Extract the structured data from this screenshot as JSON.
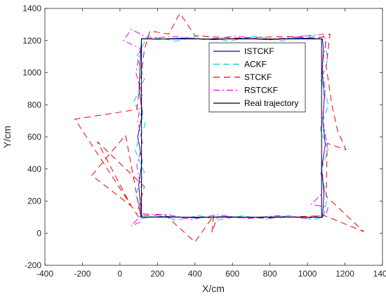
{
  "chart_data": {
    "type": "line",
    "title": "",
    "xlabel": "X/cm",
    "ylabel": "Y/cm",
    "xlim": [
      -400,
      1400
    ],
    "ylim": [
      -200,
      1400
    ],
    "xticks": [
      -400,
      -200,
      0,
      200,
      400,
      600,
      800,
      1000,
      1200,
      1400
    ],
    "yticks": [
      -200,
      0,
      200,
      400,
      600,
      800,
      1000,
      1200,
      1400
    ],
    "grid": false,
    "legend_position": "top-right",
    "series": [
      {
        "name": "ISTCKF",
        "color": "#0000cc",
        "dash": "solid",
        "points": [
          [
            110,
            100
          ],
          [
            250,
            104
          ],
          [
            400,
            96
          ],
          [
            550,
            103
          ],
          [
            700,
            99
          ],
          [
            850,
            102
          ],
          [
            1000,
            100
          ],
          [
            1080,
            98
          ],
          [
            1088,
            250
          ],
          [
            1075,
            400
          ],
          [
            1095,
            550
          ],
          [
            1082,
            700
          ],
          [
            1090,
            850
          ],
          [
            1078,
            1000
          ],
          [
            1085,
            1150
          ],
          [
            1080,
            1210
          ],
          [
            950,
            1216
          ],
          [
            800,
            1205
          ],
          [
            650,
            1214
          ],
          [
            500,
            1206
          ],
          [
            350,
            1215
          ],
          [
            200,
            1208
          ],
          [
            115,
            1212
          ],
          [
            108,
            1050
          ],
          [
            102,
            900
          ],
          [
            120,
            750
          ],
          [
            95,
            600
          ],
          [
            118,
            450
          ],
          [
            100,
            300
          ],
          [
            112,
            150
          ],
          [
            110,
            100
          ]
        ]
      },
      {
        "name": "ACKF",
        "color": "#00cccc",
        "dash": "9,5",
        "points": [
          [
            110,
            90
          ],
          [
            220,
            108
          ],
          [
            300,
            80
          ],
          [
            420,
            110
          ],
          [
            520,
            82
          ],
          [
            650,
            108
          ],
          [
            780,
            88
          ],
          [
            900,
            110
          ],
          [
            1030,
            85
          ],
          [
            1085,
            100
          ],
          [
            1105,
            220
          ],
          [
            1070,
            380
          ],
          [
            1110,
            520
          ],
          [
            1068,
            650
          ],
          [
            1112,
            800
          ],
          [
            1072,
            950
          ],
          [
            1108,
            1080
          ],
          [
            1090,
            1220
          ],
          [
            980,
            1230
          ],
          [
            860,
            1198
          ],
          [
            720,
            1228
          ],
          [
            580,
            1195
          ],
          [
            430,
            1232
          ],
          [
            300,
            1196
          ],
          [
            150,
            1228
          ],
          [
            90,
            1100
          ],
          [
            130,
            960
          ],
          [
            75,
            820
          ],
          [
            135,
            680
          ],
          [
            80,
            520
          ],
          [
            130,
            380
          ],
          [
            85,
            240
          ],
          [
            120,
            100
          ]
        ]
      },
      {
        "name": "STCKF",
        "color": "#ee0000",
        "dash": "9,6",
        "points": [
          [
            100,
            100
          ],
          [
            -240,
            710
          ],
          [
            90,
            770
          ],
          [
            130,
            1140
          ],
          [
            160,
            1260
          ],
          [
            260,
            1240
          ],
          [
            320,
            1370
          ],
          [
            400,
            1230
          ],
          [
            600,
            1215
          ],
          [
            900,
            1225
          ],
          [
            1060,
            1215
          ],
          [
            1120,
            1240
          ],
          [
            1100,
            1040
          ],
          [
            1130,
            800
          ],
          [
            1160,
            640
          ],
          [
            1205,
            520
          ],
          [
            1105,
            560
          ],
          [
            1100,
            230
          ],
          [
            1300,
            10
          ],
          [
            1090,
            110
          ],
          [
            800,
            95
          ],
          [
            520,
            100
          ],
          [
            490,
            5
          ],
          [
            500,
            110
          ],
          [
            400,
            -55
          ],
          [
            240,
            115
          ],
          [
            110,
            110
          ],
          [
            30,
            610
          ],
          [
            -150,
            360
          ],
          [
            60,
            170
          ],
          [
            -120,
            570
          ],
          [
            130,
            290
          ],
          [
            90,
            120
          ]
        ]
      },
      {
        "name": "RSTCKF",
        "color": "#ee00ee",
        "dash": "9,4,2,4",
        "points": [
          [
            110,
            70
          ],
          [
            60,
            45
          ],
          [
            120,
            120
          ],
          [
            260,
            115
          ],
          [
            380,
            85
          ],
          [
            520,
            115
          ],
          [
            680,
            90
          ],
          [
            840,
            110
          ],
          [
            1000,
            90
          ],
          [
            1100,
            120
          ],
          [
            1110,
            160
          ],
          [
            1020,
            180
          ],
          [
            1090,
            260
          ],
          [
            1075,
            420
          ],
          [
            1100,
            580
          ],
          [
            1080,
            720
          ],
          [
            1095,
            880
          ],
          [
            1078,
            1040
          ],
          [
            1100,
            1200
          ],
          [
            1085,
            1240
          ],
          [
            940,
            1222
          ],
          [
            780,
            1205
          ],
          [
            620,
            1228
          ],
          [
            460,
            1205
          ],
          [
            300,
            1225
          ],
          [
            150,
            1215
          ],
          [
            60,
            1270
          ],
          [
            20,
            1200
          ],
          [
            110,
            1150
          ],
          [
            85,
            1000
          ],
          [
            118,
            860
          ],
          [
            95,
            700
          ],
          [
            120,
            560
          ],
          [
            90,
            420
          ],
          [
            115,
            260
          ],
          [
            110,
            100
          ]
        ]
      },
      {
        "name": "Real trajectory",
        "color": "#000000",
        "dash": "solid",
        "points": [
          [
            115,
            100
          ],
          [
            1075,
            100
          ],
          [
            1075,
            1210
          ],
          [
            115,
            1210
          ],
          [
            115,
            100
          ]
        ]
      }
    ]
  }
}
